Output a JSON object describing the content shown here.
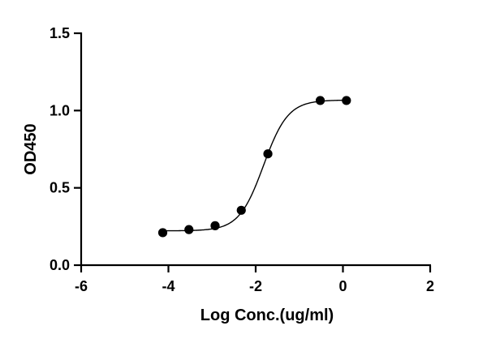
{
  "chart_data": {
    "type": "scatter",
    "xlabel": "Log Conc.(ug/ml)",
    "ylabel": "OD450",
    "xlim": [
      -6,
      2
    ],
    "ylim": [
      0.0,
      1.5
    ],
    "x_ticks": [
      -6,
      -4,
      -2,
      0,
      2
    ],
    "y_ticks": [
      0.0,
      0.5,
      1.0,
      1.5
    ],
    "x_tick_labels": [
      "-6",
      "-4",
      "-2",
      "0",
      "2"
    ],
    "y_tick_labels": [
      "0.0",
      "0.5",
      "1.0",
      "1.5"
    ],
    "grid": false,
    "legend": "none",
    "series": [
      {
        "x": [
          -4.13,
          -3.53,
          -2.93,
          -2.33,
          -1.72,
          -0.52,
          0.08
        ],
        "y": [
          0.21,
          0.23,
          0.255,
          0.355,
          0.72,
          1.065,
          1.065
        ],
        "marker": "filled-circle",
        "color": "#000000",
        "fit": "four-parameter-logistic sigmoid"
      }
    ]
  }
}
